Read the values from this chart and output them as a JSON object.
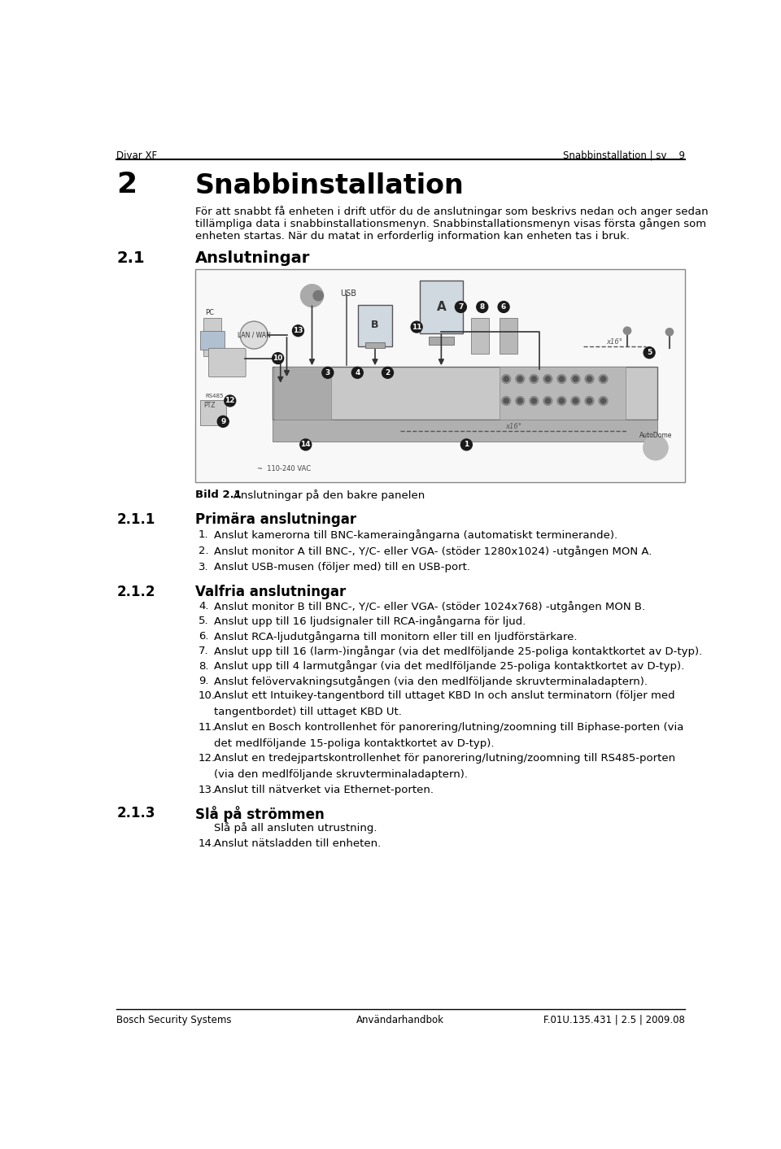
{
  "page_bg": "#ffffff",
  "header_left": "Divar XF",
  "header_right": "Snabbinstallation | sv    9",
  "chapter_num": "2",
  "chapter_title": "Snabbinstallation",
  "intro_line1": "För att snabbt få enheten i drift utför du de anslutningar som beskrivs nedan och anger sedan",
  "intro_line2": "tillämpliga data i snabbinstallationsmenyn. Snabbinstallationsmenyn visas första gången som",
  "intro_line3": "enheten startas. När du matat in erforderlig information kan enheten tas i bruk.",
  "section_2_1_num": "2.1",
  "section_2_1_title": "Anslutningar",
  "fig_caption_bold": "Bild 2.1",
  "fig_caption_normal": "   Anslutningar på den bakre panelen",
  "section_2_1_1_num": "2.1.1",
  "section_2_1_1_title": "Primära anslutningar",
  "section_2_1_2_num": "2.1.2",
  "section_2_1_2_title": "Valfria anslutningar",
  "section_2_1_3_num": "2.1.3",
  "section_2_1_3_title": "Slå på strömmen",
  "footer_left": "Bosch Security Systems",
  "footer_center": "Användarhandbok",
  "footer_right": "F.01U.135.431 | 2.5 | 2009.08",
  "primary_items": [
    [
      "1.",
      "Anslut kamerorna till BNC-kameraingångarna (automatiskt terminerande)."
    ],
    [
      "2.",
      "Anslut monitor A till BNC-, Y/C- eller VGA- (stöder 1280x1024) -utgången MON A."
    ],
    [
      "3.",
      "Anslut USB-musen (följer med) till en USB-port."
    ]
  ],
  "valfria_items": [
    [
      "4.",
      "Anslut monitor B till BNC-, Y/C- eller VGA- (stöder 1024x768) -utgången MON B."
    ],
    [
      "5.",
      "Anslut upp till 16 ljudsignaler till RCA-ingångarna för ljud."
    ],
    [
      "6.",
      "Anslut RCA-ljudutgångarna till monitorn eller till en ljudförstärkare."
    ],
    [
      "7.",
      "Anslut upp till 16 (larm-)ingångar (via det medlföljande 25-poliga kontaktkortet av D-typ)."
    ],
    [
      "8.",
      "Anslut upp till 4 larmutgångar (via det medlföljande 25-poliga kontaktkortet av D-typ)."
    ],
    [
      "9.",
      "Anslut felövervakningsutgången (via den medlföljande skruvterminaladaptern)."
    ],
    [
      "10.",
      "Anslut ett Intuikey-tangentbord till uttaget KBD In och anslut terminatorn (följer med"
    ],
    [
      "",
      "tangentbordet) till uttaget KBD Ut."
    ],
    [
      "11.",
      "Anslut en Bosch kontrollenhet för panorering/lutning/zoomning till Biphase-porten (via"
    ],
    [
      "",
      "det medlföljande 15-poliga kontaktkortet av D-typ)."
    ],
    [
      "12.",
      "Anslut en tredejpartskontrollenhet för panorering/lutning/zoomning till RS485-porten"
    ],
    [
      "",
      "(via den medlföljande skruvterminaladaptern)."
    ],
    [
      "13.",
      "Anslut till nätverket via Ethernet-porten."
    ]
  ],
  "strom_items": [
    [
      "",
      "Slå på all ansluten utrustning."
    ],
    [
      "14.",
      "Anslut nätsladden till enheten."
    ]
  ]
}
